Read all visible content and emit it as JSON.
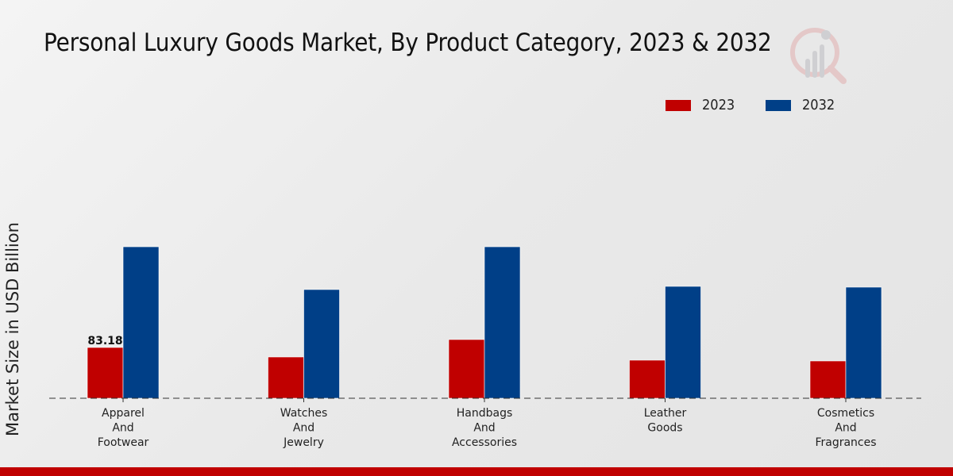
{
  "chart_data": {
    "type": "bar",
    "title": "Personal Luxury Goods Market, By Product Category, 2023 & 2032",
    "xlabel": "",
    "ylabel": "Market Size in USD Billion",
    "categories": [
      [
        "Apparel",
        "And",
        "Footwear"
      ],
      [
        "Watches",
        "And",
        "Jewelry"
      ],
      [
        "Handbags",
        "And",
        "Accessories"
      ],
      [
        "Leather",
        "Goods"
      ],
      [
        "Cosmetics",
        "And",
        "Fragrances"
      ]
    ],
    "series": [
      {
        "name": "2023",
        "color": "#c00000",
        "values": [
          83.18,
          67.6,
          96.2,
          62.4,
          61.1
        ]
      },
      {
        "name": "2032",
        "color": "#003f87",
        "values": [
          248.2,
          178.1,
          248.2,
          183.3,
          182.0
        ]
      }
    ],
    "data_labels": [
      {
        "series": 0,
        "index": 0,
        "text": "83.18"
      }
    ],
    "ylim": [
      0,
      380
    ],
    "grid": false,
    "legend": "top-right",
    "baseline": "dashed"
  },
  "legend": [
    {
      "label": "2023",
      "color": "#c00000"
    },
    {
      "label": "2032",
      "color": "#003f87"
    }
  ],
  "footer_bar_color": "#c00000"
}
